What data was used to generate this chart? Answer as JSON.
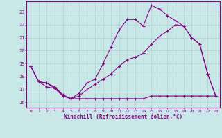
{
  "bg_color": "#c8e8e8",
  "line_color": "#880088",
  "grid_color": "#b0d0d0",
  "xlabel": "Windchill (Refroidissement éolien,°C)",
  "xlim": [
    -0.5,
    23.5
  ],
  "ylim": [
    15.6,
    23.8
  ],
  "yticks": [
    16,
    17,
    18,
    19,
    20,
    21,
    22,
    23
  ],
  "xticks": [
    0,
    1,
    2,
    3,
    4,
    5,
    6,
    7,
    8,
    9,
    10,
    11,
    12,
    13,
    14,
    15,
    16,
    17,
    18,
    19,
    20,
    21,
    22,
    23
  ],
  "line1": {
    "x": [
      0,
      1,
      2,
      3,
      4,
      5,
      6,
      7,
      8,
      9,
      10,
      11,
      12,
      13,
      14,
      15,
      16,
      17,
      18,
      19,
      20,
      21,
      22,
      23
    ],
    "y": [
      18.8,
      17.6,
      17.5,
      17.1,
      16.5,
      16.3,
      16.5,
      17.0,
      17.4,
      17.8,
      18.2,
      18.8,
      19.3,
      19.5,
      19.8,
      20.5,
      21.1,
      21.5,
      22.0,
      21.9,
      21.0,
      20.5,
      18.2,
      16.5
    ]
  },
  "line2": {
    "x": [
      0,
      1,
      2,
      3,
      4,
      5,
      6,
      7,
      8,
      9,
      10,
      11,
      12,
      13,
      14,
      15,
      16,
      17,
      18,
      19,
      20,
      21,
      22,
      23
    ],
    "y": [
      18.8,
      17.6,
      17.5,
      17.2,
      16.6,
      16.3,
      16.7,
      17.5,
      17.8,
      19.0,
      20.3,
      21.6,
      22.4,
      22.4,
      21.9,
      23.5,
      23.2,
      22.7,
      22.3,
      21.9,
      21.0,
      20.5,
      18.2,
      16.5
    ]
  },
  "line3": {
    "x": [
      0,
      1,
      2,
      3,
      4,
      5,
      6,
      7,
      8,
      9,
      10,
      11,
      12,
      13,
      14,
      15,
      16,
      17,
      18,
      19,
      20,
      21,
      22,
      23
    ],
    "y": [
      18.8,
      17.6,
      17.2,
      17.1,
      16.5,
      16.3,
      16.3,
      16.3,
      16.3,
      16.3,
      16.3,
      16.3,
      16.3,
      16.3,
      16.3,
      16.5,
      16.5,
      16.5,
      16.5,
      16.5,
      16.5,
      16.5,
      16.5,
      16.5
    ]
  }
}
